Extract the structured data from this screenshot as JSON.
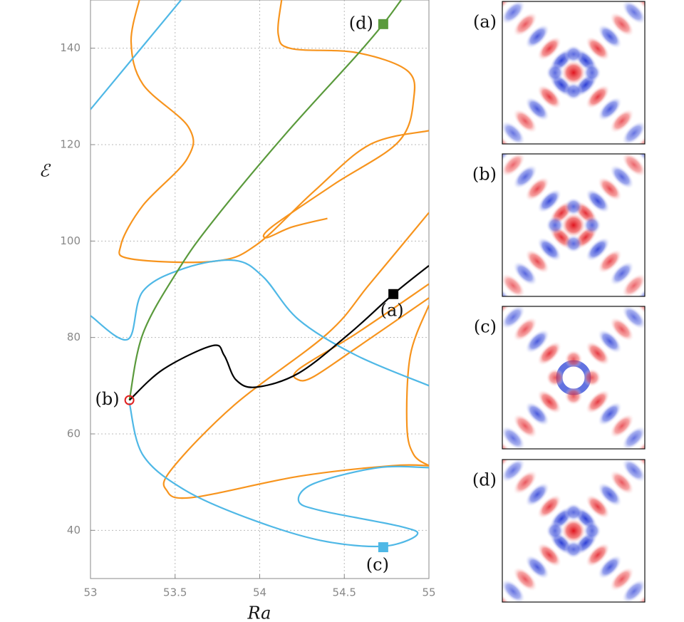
{
  "chart_data": {
    "type": "line",
    "xlabel": "Ra",
    "ylabel": "ℰ",
    "xlim": [
      53,
      55
    ],
    "ylim": [
      30,
      150
    ],
    "xticks": [
      53,
      53.5,
      54,
      54.5,
      55
    ],
    "yticks": [
      40,
      60,
      80,
      100,
      120,
      140
    ],
    "grid": true,
    "series": [
      {
        "color": "#f7941d",
        "x": [
          54.13,
          54.11,
          54.19,
          54.57,
          54.87,
          54.91,
          54.82,
          54.44,
          54.07,
          54.04,
          54.19,
          54.4
        ],
        "values": [
          150.2,
          142.8,
          139.9,
          139.1,
          135.4,
          129.5,
          120.6,
          111.8,
          102.9,
          100.7,
          102.9,
          104.7
        ]
      },
      {
        "color": "#f7941d",
        "x": [
          53.29,
          53.24,
          53.31,
          53.58,
          53.57,
          53.31,
          53.18,
          53.24,
          53.73,
          53.98,
          54.32,
          54.65,
          55
        ],
        "values": [
          150.2,
          141.3,
          132.5,
          123.6,
          117.0,
          107.4,
          99.2,
          96.3,
          95.8,
          99.2,
          110.3,
          120.0,
          122.9
        ]
      },
      {
        "color": "#f7941d",
        "x": [
          55,
          54.65,
          54.4,
          53.85,
          53.48,
          53.45,
          53.6,
          54.23,
          54.78,
          55
        ],
        "values": [
          105.9,
          91.1,
          80.8,
          66.0,
          52.7,
          48.3,
          46.8,
          51.2,
          53.4,
          53.4
        ]
      },
      {
        "color": "#f7941d",
        "x": [
          55,
          54.57,
          54.23,
          54.23,
          54.32,
          54.57,
          55
        ],
        "values": [
          91.1,
          80.8,
          73.4,
          71.2,
          71.9,
          77.8,
          88.2
        ]
      },
      {
        "color": "#f7941d",
        "x": [
          55,
          54.89,
          54.87,
          54.91,
          55
        ],
        "values": [
          86.7,
          76.3,
          61.6,
          55.7,
          53.4
        ]
      },
      {
        "color": "#4fb8e6",
        "x": [
          53,
          53.54
        ],
        "values": [
          127.3,
          150.2
        ]
      },
      {
        "color": "#4fb8e6",
        "x": [
          53,
          53.22,
          53.31,
          53.56,
          53.85,
          54.02,
          54.23,
          54.57,
          55
        ],
        "values": [
          84.5,
          79.6,
          89.6,
          94.4,
          96.0,
          92.6,
          83.7,
          76.3,
          70.0
        ]
      },
      {
        "color": "#4fb8e6",
        "x": [
          53.23,
          53.31,
          53.56,
          53.94,
          54.36,
          54.73,
          54.93,
          54.82,
          54.36,
          54.23,
          54.32,
          54.7,
          55
        ],
        "values": [
          66.4,
          55.6,
          48.3,
          42.4,
          37.9,
          36.7,
          39.1,
          40.9,
          44.1,
          46.1,
          49.7,
          53.0,
          53.0
        ]
      },
      {
        "color": "#5a9a3c",
        "x": [
          53.23,
          53.31,
          53.52,
          53.73,
          54.15,
          54.57,
          54.73,
          54.84
        ],
        "values": [
          67.0,
          80.8,
          94.1,
          104.4,
          122.1,
          138.4,
          145.0,
          150.2
        ]
      },
      {
        "color": "#000000",
        "x": [
          53.23,
          53.43,
          53.72,
          53.79,
          53.86,
          53.98,
          54.23,
          54.53,
          54.79,
          55
        ],
        "values": [
          67.0,
          73.4,
          78.3,
          76.3,
          71.2,
          69.7,
          72.6,
          80.8,
          89.0,
          94.9
        ]
      }
    ],
    "markers": [
      {
        "label": "(a)",
        "x": 54.79,
        "y": 89.0,
        "color": "#000000",
        "shape": "square"
      },
      {
        "label": "(b)",
        "x": 53.23,
        "y": 67.0,
        "color": "#e02020",
        "shape": "circle"
      },
      {
        "label": "(c)",
        "x": 54.73,
        "y": 36.5,
        "color": "#4fb8e6",
        "shape": "square"
      },
      {
        "label": "(d)",
        "x": 54.73,
        "y": 145.0,
        "color": "#5a9a3c",
        "shape": "square"
      }
    ]
  },
  "panels": [
    "(a)",
    "(b)",
    "(c)",
    "(d)"
  ]
}
